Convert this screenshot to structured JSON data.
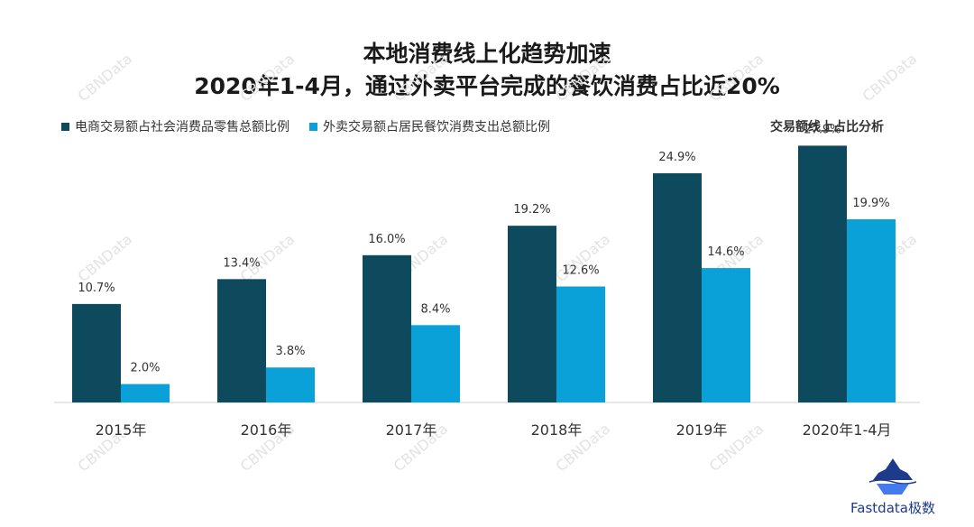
{
  "chart_data": {
    "type": "bar",
    "title": "本地消费线上化趋势加速",
    "subtitle": "2020年1-4月，通过外卖平台完成的餐饮消费占比近20%",
    "right_label": "交易额线上占比分析",
    "categories": [
      "2015年",
      "2016年",
      "2017年",
      "2018年",
      "2019年",
      "2020年1-4月"
    ],
    "series": [
      {
        "name": "电商交易额占社会消费品零售总额比例",
        "color": "#0e4a5e",
        "values": [
          10.7,
          13.4,
          16.0,
          19.2,
          24.9,
          27.9
        ],
        "labels": [
          "10.7%",
          "13.4%",
          "16.0%",
          "19.2%",
          "24.9%",
          "27.9%"
        ]
      },
      {
        "name": "外卖交易额占居民餐饮消费支出总额比例",
        "color": "#0aa0d8",
        "values": [
          2.0,
          3.8,
          8.4,
          12.6,
          14.6,
          19.9
        ],
        "labels": [
          "2.0%",
          "3.8%",
          "8.4%",
          "12.6%",
          "14.6%",
          "19.9%"
        ]
      }
    ],
    "legend_position": "top-left",
    "grid": false,
    "ylim": [
      0,
      30
    ]
  },
  "watermark": "CBNData",
  "brand": {
    "name": "Fastdata极数",
    "logo_icon": "iceberg-icon",
    "color": "#1e3a8a"
  }
}
